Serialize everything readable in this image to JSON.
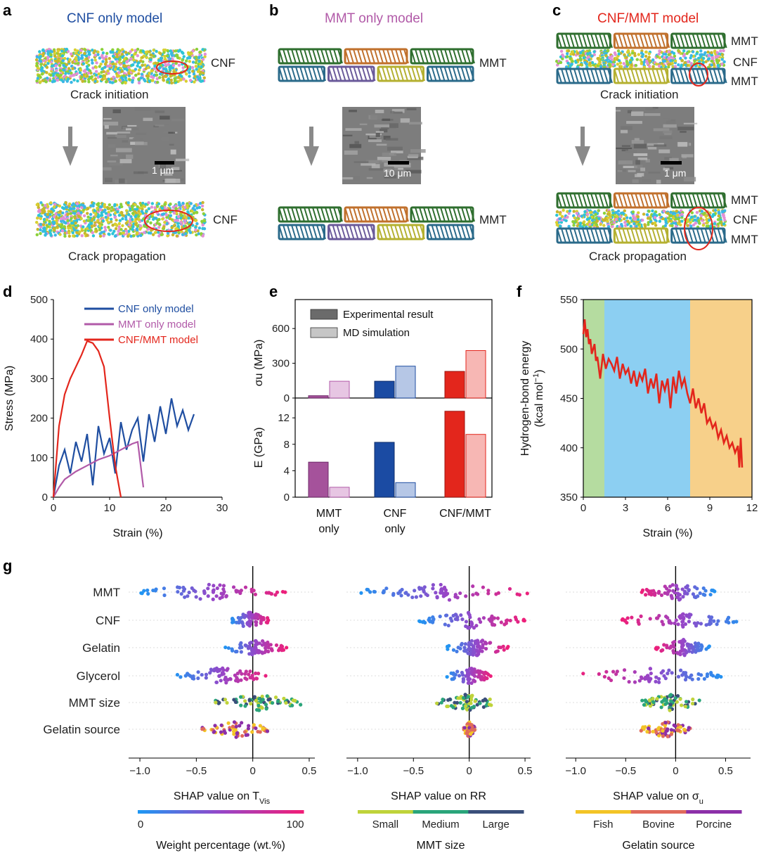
{
  "panels": {
    "a": {
      "letter": "a",
      "title": "CNF only model",
      "label_top": "CNF",
      "label_bottom": "CNF",
      "caption_top": "Crack initiation",
      "caption_bottom": "Crack propagation",
      "scalebar": "1 μm"
    },
    "b": {
      "letter": "b",
      "title": "MMT only model",
      "label_top": "MMT",
      "label_bottom": "MMT",
      "scalebar": "10 μm"
    },
    "c": {
      "letter": "c",
      "title": "CNF/MMT model",
      "labels_top": [
        "MMT",
        "CNF",
        "MMT"
      ],
      "labels_bottom": [
        "MMT",
        "CNF",
        "MMT"
      ],
      "caption_top": "Crack initiation",
      "caption_bottom": "Crack propagation",
      "scalebar": "1 μm"
    },
    "d": {
      "letter": "d"
    },
    "e": {
      "letter": "e"
    },
    "f": {
      "letter": "f"
    },
    "g": {
      "letter": "g"
    }
  },
  "colors": {
    "cnf": "#1f4ea1",
    "mmt": "#b15aa8",
    "cnfmmt": "#e3261c",
    "green_band": "#b5dca0",
    "blue_band": "#8ccff2",
    "orange_band": "#f7d08a"
  },
  "chart_data": [
    {
      "id": "d",
      "type": "line",
      "xlabel": "Strain (%)",
      "ylabel": "Stress (MPa)",
      "xlim": [
        0,
        30
      ],
      "ylim": [
        0,
        500
      ],
      "xticks": [
        "0",
        "10",
        "20",
        "30"
      ],
      "yticks": [
        "0",
        "100",
        "200",
        "300",
        "400",
        "500"
      ],
      "legend_position": "top-right",
      "series": [
        {
          "name": "CNF only model",
          "color": "#1f4ea1",
          "x": [
            0,
            1,
            2,
            3,
            4,
            5,
            6,
            7,
            8,
            9,
            10,
            11,
            12,
            13,
            14,
            15,
            16,
            17,
            18,
            19,
            20,
            21,
            22,
            23,
            24,
            25
          ],
          "y": [
            0,
            80,
            120,
            60,
            140,
            90,
            160,
            30,
            180,
            110,
            150,
            60,
            190,
            120,
            170,
            200,
            90,
            210,
            140,
            230,
            160,
            250,
            180,
            220,
            170,
            210
          ]
        },
        {
          "name": "MMT only model",
          "color": "#b15aa8",
          "x": [
            0,
            1,
            2,
            4,
            6,
            8,
            10,
            12,
            14,
            15,
            16
          ],
          "y": [
            0,
            25,
            45,
            65,
            80,
            95,
            105,
            120,
            135,
            140,
            25
          ]
        },
        {
          "name": "CNF/MMT model",
          "color": "#e3261c",
          "x": [
            0,
            0.5,
            1,
            2,
            3,
            4,
            5,
            6,
            7,
            8,
            9,
            10,
            10.5,
            11,
            11.5,
            12
          ],
          "y": [
            0,
            90,
            180,
            260,
            300,
            330,
            360,
            395,
            390,
            370,
            330,
            200,
            140,
            80,
            40,
            0
          ]
        }
      ]
    },
    {
      "id": "e",
      "type": "bar",
      "categories": [
        "MMT\nonly",
        "CNF\nonly",
        "CNF/MMT"
      ],
      "category_lines": [
        [
          "MMT",
          "only"
        ],
        [
          "CNF",
          "only"
        ],
        [
          "CNF/MMT"
        ]
      ],
      "legend": [
        "Experimental result",
        "MD simulation"
      ],
      "top": {
        "ylabel": "σu (MPa)",
        "ylim": [
          0,
          850
        ],
        "yticks": [
          "0",
          "300",
          "600"
        ],
        "experimental": [
          20,
          145,
          230
        ],
        "md": [
          145,
          275,
          410
        ]
      },
      "bottom": {
        "ylabel": "E (GPa)",
        "ylim": [
          0,
          15
        ],
        "yticks": [
          "0",
          "4",
          "8",
          "12"
        ],
        "experimental": [
          5.3,
          8.3,
          13
        ],
        "md": [
          1.5,
          2.2,
          9.5
        ]
      }
    },
    {
      "id": "f",
      "type": "line",
      "xlabel": "Strain (%)",
      "ylabel": "Hydrogen-bond energy (kcal mol−1)",
      "ylabel_lines": [
        "Hydrogen-bond energy",
        "(kcal mol",
        "−1",
        ")"
      ],
      "xlim": [
        0,
        12
      ],
      "ylim": [
        350,
        550
      ],
      "xticks": [
        "0",
        "3",
        "6",
        "9",
        "12"
      ],
      "yticks": [
        "350",
        "400",
        "450",
        "500",
        "550"
      ],
      "bands": [
        [
          0,
          1.5
        ],
        [
          1.5,
          7.6
        ],
        [
          7.6,
          12
        ]
      ],
      "series": [
        {
          "name": "",
          "color": "#e3261c",
          "x": [
            0,
            0.1,
            0.2,
            0.3,
            0.4,
            0.5,
            0.6,
            0.7,
            0.8,
            0.9,
            1.0,
            1.2,
            1.4,
            1.6,
            1.8,
            2.0,
            2.2,
            2.4,
            2.6,
            2.8,
            3.0,
            3.2,
            3.4,
            3.6,
            3.8,
            4.0,
            4.2,
            4.4,
            4.6,
            4.8,
            5.0,
            5.2,
            5.4,
            5.6,
            5.8,
            6.0,
            6.2,
            6.4,
            6.6,
            6.8,
            7.0,
            7.2,
            7.4,
            7.6,
            7.8,
            8.0,
            8.2,
            8.4,
            8.6,
            8.8,
            9.0,
            9.2,
            9.4,
            9.6,
            9.8,
            10.0,
            10.2,
            10.4,
            10.6,
            10.8,
            11.0,
            11.1,
            11.2,
            11.3
          ],
          "y": [
            515,
            530,
            512,
            520,
            505,
            510,
            495,
            500,
            505,
            488,
            492,
            470,
            495,
            480,
            490,
            485,
            478,
            492,
            470,
            485,
            475,
            480,
            465,
            478,
            462,
            475,
            468,
            480,
            455,
            470,
            460,
            475,
            445,
            468,
            458,
            470,
            440,
            472,
            455,
            478,
            462,
            470,
            455,
            445,
            460,
            440,
            450,
            435,
            445,
            425,
            430,
            420,
            425,
            410,
            418,
            405,
            412,
            400,
            405,
            395,
            402,
            380,
            410,
            380
          ]
        }
      ]
    },
    {
      "id": "g1",
      "type": "scatter",
      "xlabel": "SHAP value on TVis",
      "xlabel_main": "SHAP value on T",
      "xlabel_sub": "Vis",
      "xlim": [
        -1.1,
        0.55
      ],
      "xticks": [
        "−1.0",
        "−0.5",
        "0",
        "0.5"
      ],
      "categories": [
        "MMT",
        "CNF",
        "Gelatin",
        "Glycerol",
        "MMT size",
        "Gelatin source"
      ],
      "colorbar": {
        "title": "Weight percentage (wt.%)",
        "min": "0",
        "max": "100"
      },
      "ranges": [
        [
          -1.0,
          0.3
        ],
        [
          -0.2,
          0.15
        ],
        [
          -0.25,
          0.3
        ],
        [
          -0.7,
          0.15
        ],
        [
          -0.35,
          0.45
        ],
        [
          -0.45,
          0.15
        ]
      ]
    },
    {
      "id": "g2",
      "type": "scatter",
      "xlabel": "SHAP value on RR",
      "xlim": [
        -1.1,
        0.55
      ],
      "xticks": [
        "−1.0",
        "−0.5",
        "0",
        "0.5"
      ],
      "categories": [
        "MMT",
        "CNF",
        "Gelatin",
        "Glycerol",
        "MMT size",
        "Gelatin source"
      ],
      "colorbar": {
        "title": "MMT size",
        "labels": [
          "Small",
          "Medium",
          "Large"
        ]
      },
      "ranges": [
        [
          -1.0,
          0.55
        ],
        [
          -0.45,
          0.5
        ],
        [
          -0.2,
          0.35
        ],
        [
          -0.2,
          0.2
        ],
        [
          -0.3,
          0.25
        ],
        [
          -0.05,
          0.05
        ]
      ]
    },
    {
      "id": "g3",
      "type": "scatter",
      "xlabel": "SHAP value on σu",
      "xlabel_main": "SHAP value on σ",
      "xlabel_sub": "u",
      "xlim": [
        -1.1,
        0.75
      ],
      "xticks": [
        "−1.0",
        "−0.5",
        "0",
        "0.5"
      ],
      "categories": [
        "MMT",
        "CNF",
        "Gelatin",
        "Glycerol",
        "MMT size",
        "Gelatin source"
      ],
      "colorbar": {
        "title": "Gelatin source",
        "labels": [
          "Fish",
          "Bovine",
          "Porcine"
        ]
      },
      "ranges": [
        [
          -0.35,
          0.4
        ],
        [
          -0.55,
          0.7
        ],
        [
          -0.2,
          0.35
        ],
        [
          -1.0,
          0.5
        ],
        [
          -0.35,
          0.25
        ],
        [
          -0.35,
          0.15
        ]
      ]
    }
  ]
}
